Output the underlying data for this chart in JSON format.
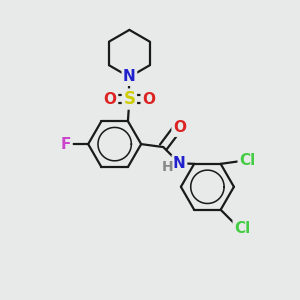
{
  "bg_color": "#e8eaea",
  "bond_color": "#1a1a1a",
  "bond_width": 1.6,
  "atom_colors": {
    "N": "#2020cc",
    "O": "#dd2222",
    "S": "#cccc00",
    "F": "#cc44cc",
    "Cl": "#44cc44",
    "H": "#888888"
  },
  "figsize": [
    3.0,
    3.0
  ],
  "dpi": 100,
  "xlim": [
    0,
    10
  ],
  "ylim": [
    0,
    10
  ]
}
